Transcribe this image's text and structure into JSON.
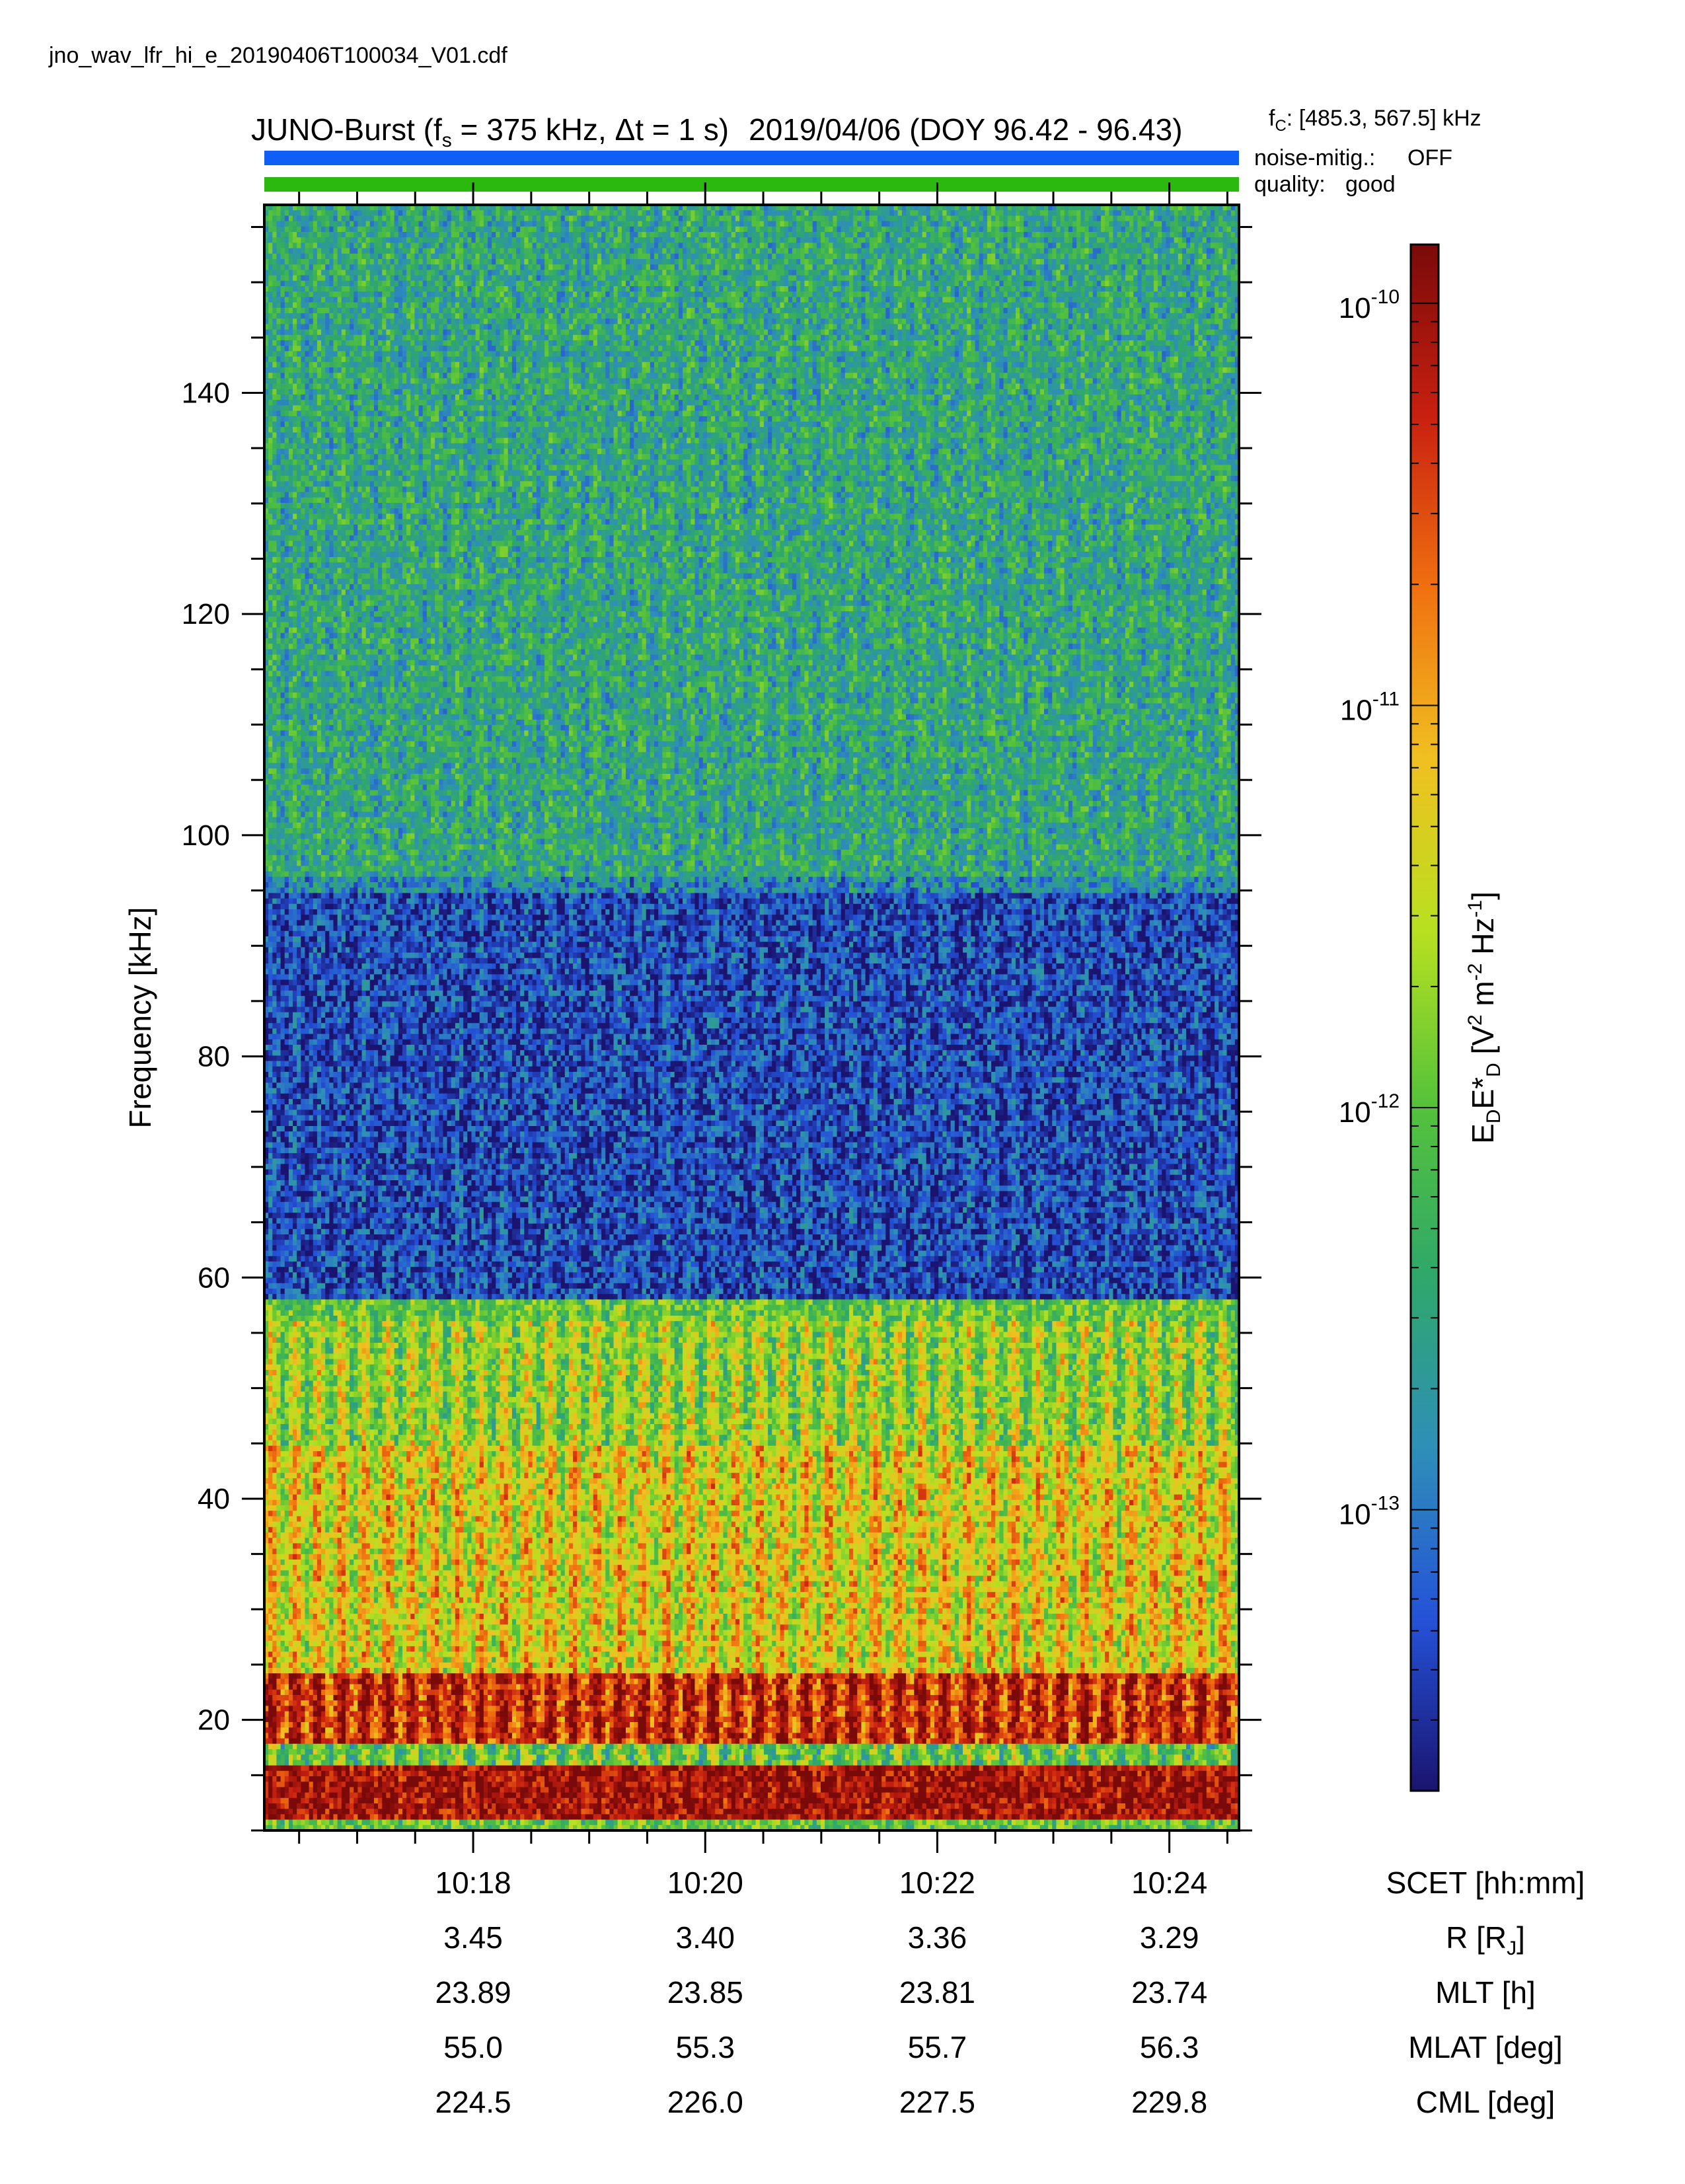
{
  "filename": "jno_wav_lfr_hi_e_20190406T100034_V01.cdf",
  "title": {
    "main_prefix": "JUNO-Burst (f",
    "main_sub": "s",
    "main_mid": " = 375 kHz, Δt = 1 s)",
    "main_date": "2019/04/06 (DOY 96.42 - 96.43)"
  },
  "fc": {
    "symbol": "f",
    "sub": "C",
    "value": ": [485.3, 567.5] kHz"
  },
  "noise": {
    "label": "noise-mitig.:",
    "value": "OFF",
    "bar_color": "#0f5ff5",
    "value_color": "#0f5ff5"
  },
  "quality": {
    "label": "quality:",
    "value": "good",
    "bar_color": "#2bb80f",
    "value_color": "#2bb80f"
  },
  "colorbar": {
    "label_main": "E",
    "label_sub": "D",
    "label_mid": "E*",
    "label_sub2": "D",
    "label_units_a": " [V",
    "label_units_sup": "2",
    "label_units_b": " m",
    "label_units_sup2": "-2",
    "label_units_c": " Hz",
    "label_units_sup3": "-1",
    "label_units_d": "]",
    "ticks": [
      {
        "base": "10",
        "exp": "-10",
        "value": 1e-10
      },
      {
        "base": "10",
        "exp": "-11",
        "value": 1e-11
      },
      {
        "base": "10",
        "exp": "-12",
        "value": 1e-12
      },
      {
        "base": "10",
        "exp": "-13",
        "value": 1e-13
      }
    ],
    "range": [
      2e-14,
      1.4e-10
    ],
    "scale": "log",
    "colormap": [
      "#1a1470",
      "#2552d8",
      "#2e8fb8",
      "#2fa86a",
      "#55c23a",
      "#b8e020",
      "#f0c020",
      "#f07010",
      "#c82010",
      "#7a0a0a"
    ]
  },
  "chart_data": {
    "type": "heatmap",
    "ylabel": "Frequency [kHz]",
    "yticks": [
      20,
      40,
      60,
      80,
      100,
      120,
      140
    ],
    "ylim": [
      10,
      157
    ],
    "xlabel": "SCET [hh:mm]",
    "xlim_minutes": [
      1016.2,
      1024.6
    ],
    "xticks": [
      {
        "label": "10:18",
        "minutes": 1018
      },
      {
        "label": "10:20",
        "minutes": 1020
      },
      {
        "label": "10:22",
        "minutes": 1022
      },
      {
        "label": "10:24",
        "minutes": 1024
      }
    ],
    "ephemeris": [
      {
        "label": "R [R",
        "label_sub": "J",
        "label_end": "]",
        "values": [
          "3.45",
          "3.40",
          "3.36",
          "3.29"
        ]
      },
      {
        "label": "MLT [h]",
        "label_sub": "",
        "label_end": "",
        "values": [
          "23.89",
          "23.85",
          "23.81",
          "23.74"
        ]
      },
      {
        "label": "MLAT [deg]",
        "label_sub": "",
        "label_end": "",
        "values": [
          "55.0",
          "55.3",
          "55.7",
          "56.3"
        ]
      },
      {
        "label": "CML [deg]",
        "label_sub": "",
        "label_end": "",
        "values": [
          "224.5",
          "226.0",
          "227.5",
          "229.8"
        ]
      }
    ],
    "spectral_features": [
      {
        "description": "intense band",
        "freq_khz": [
          11,
          16
        ],
        "level": 0.95
      },
      {
        "description": "intense modulated band",
        "freq_khz": [
          18,
          24
        ],
        "level": 0.88
      },
      {
        "description": "enhanced band",
        "freq_khz": [
          24,
          45
        ],
        "level": 0.62
      },
      {
        "description": "modulated emission",
        "freq_khz": [
          45,
          56
        ],
        "level": 0.52
      },
      {
        "description": "quiet region",
        "freq_khz": [
          58,
          95
        ],
        "level": 0.1
      },
      {
        "description": "weak emission",
        "freq_khz": [
          96,
          157
        ],
        "level": 0.32
      }
    ]
  }
}
